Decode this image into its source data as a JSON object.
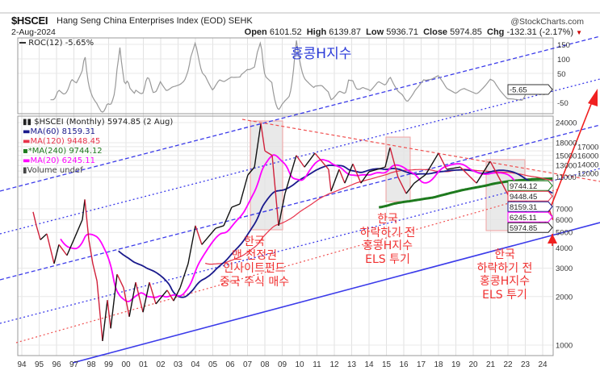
{
  "header": {
    "symbol": "$HSCEI",
    "name": "Hang Seng China Enterprises Index (EOD)  SEHK",
    "brand": "@StockCharts.com",
    "date": "2-Aug-2024",
    "open_label": "Open",
    "open": "6101.52",
    "high_label": "High",
    "high": "6139.87",
    "low_label": "Low",
    "low": "5936.71",
    "close_label": "Close",
    "close": "5974.85",
    "chg_label": "Chg",
    "chg": "-132.31 (-2.17%)"
  },
  "annotations": {
    "title": "홍콩H지수",
    "note1": [
      "한국",
      "맨 천정권",
      "인사이트펀드",
      "중국 주식 매수"
    ],
    "note2": [
      "한국",
      "하락하기 전",
      "홍콩H지수",
      "ELS 투기"
    ],
    "note3": [
      "한국",
      "하락하기 전",
      "홍콩H지수",
      "ELS 투기"
    ]
  },
  "colors": {
    "ma60": "#1a1a8c",
    "ma120": "#e8324a",
    "ma240": "#1e7a1e",
    "ma20": "#ff00ff",
    "up": "#111111",
    "down": "#d0203a",
    "channel": "#3b3bea",
    "annotation": "#f03030"
  },
  "chart_data": [
    {
      "type": "line",
      "panel": "ROC",
      "legend": "ROC(12) -5.65%",
      "last_label": "-5.65",
      "yticks": [
        "150",
        "100",
        "50",
        "-50"
      ],
      "ytick_values": [
        150,
        100,
        50,
        -50
      ]
    },
    {
      "type": "line",
      "panel": "price",
      "scale": "log",
      "legend": {
        "price": "$HSCEI (Monthly) 5974.85 (2 Aug)",
        "ma60": "MA(60) 8159.31",
        "ma120": "MA(120) 9448.45",
        "ma240": "MA(240) 9744.12",
        "ma20": "MA(20) 6245.11",
        "volume": "Volume undef"
      },
      "value_labels": {
        "ma120": "9448.45",
        "ma60": "8159.31",
        "ma20": "6245.11",
        "close": "5974.85",
        "ma240": "9744.12"
      },
      "yticks": [
        "24000",
        "18000",
        "17000",
        "16000",
        "15000",
        "14000",
        "13000",
        "12000",
        "11000",
        "7000",
        "6000",
        "5000",
        "4000",
        "3000",
        "2000",
        "1000"
      ],
      "ytick_values": [
        24000,
        18000,
        17000,
        16000,
        15000,
        14000,
        13000,
        12000,
        11000,
        7000,
        6000,
        5000,
        4000,
        3000,
        2000,
        1000
      ],
      "xticks": [
        "94",
        "95",
        "96",
        "97",
        "98",
        "99",
        "00",
        "01",
        "02",
        "03",
        "04",
        "05",
        "06",
        "07",
        "08",
        "09",
        "10",
        "11",
        "12",
        "13",
        "14",
        "15",
        "16",
        "17",
        "18",
        "19",
        "20",
        "21",
        "22",
        "23",
        "24"
      ],
      "xtick_values": [
        1994,
        1995,
        1996,
        1997,
        1998,
        1999,
        2000,
        2001,
        2002,
        2003,
        2004,
        2005,
        2006,
        2007,
        2008,
        2009,
        2010,
        2011,
        2012,
        2013,
        2014,
        2015,
        2016,
        2017,
        2018,
        2019,
        2020,
        2021,
        2022,
        2023,
        2024
      ],
      "grid": true,
      "legend_placement": "top-left",
      "points": [
        [
          1994.65,
          6700
        ],
        [
          1994.84,
          5500
        ],
        [
          1995.07,
          4500
        ],
        [
          1995.44,
          4900
        ],
        [
          1995.86,
          3200
        ],
        [
          1996.14,
          4200
        ],
        [
          1996.6,
          3600
        ],
        [
          1997.07,
          4700
        ],
        [
          1997.49,
          6000
        ],
        [
          1997.63,
          8000
        ],
        [
          1997.86,
          4500
        ],
        [
          1998.09,
          3200
        ],
        [
          1998.33,
          2500
        ],
        [
          1998.65,
          1060
        ],
        [
          1998.93,
          1900
        ],
        [
          1999.12,
          1270
        ],
        [
          1999.49,
          2750
        ],
        [
          1999.86,
          2270
        ],
        [
          2000.19,
          1500
        ],
        [
          2000.56,
          2450
        ],
        [
          2000.98,
          1600
        ],
        [
          2001.35,
          2450
        ],
        [
          2001.72,
          1800
        ],
        [
          2002.37,
          2190
        ],
        [
          2002.74,
          1880
        ],
        [
          2003.12,
          2270
        ],
        [
          2003.58,
          3200
        ],
        [
          2004.0,
          5500
        ],
        [
          2004.37,
          4200
        ],
        [
          2005.16,
          5300
        ],
        [
          2005.63,
          5500
        ],
        [
          2006.09,
          7160
        ],
        [
          2006.56,
          7500
        ],
        [
          2007.02,
          11350
        ],
        [
          2007.4,
          12700
        ],
        [
          2007.77,
          23700
        ],
        [
          2008.0,
          16000
        ],
        [
          2008.42,
          15000
        ],
        [
          2008.79,
          5500
        ],
        [
          2009.16,
          8700
        ],
        [
          2009.81,
          15000
        ],
        [
          2010.28,
          12700
        ],
        [
          2010.88,
          15500
        ],
        [
          2011.67,
          12300
        ],
        [
          2011.81,
          9000
        ],
        [
          2012.28,
          12300
        ],
        [
          2012.6,
          10100
        ],
        [
          2013.07,
          13300
        ],
        [
          2013.53,
          10100
        ],
        [
          2014.0,
          11900
        ],
        [
          2014.93,
          12700
        ],
        [
          2015.21,
          16800
        ],
        [
          2015.67,
          11000
        ],
        [
          2016.14,
          8700
        ],
        [
          2016.6,
          10100
        ],
        [
          2017.26,
          11400
        ],
        [
          2018.0,
          15500
        ],
        [
          2018.47,
          12300
        ],
        [
          2019.26,
          12700
        ],
        [
          2020.19,
          10100
        ],
        [
          2020.98,
          13800
        ],
        [
          2021.72,
          9800
        ],
        [
          2022.19,
          7800
        ],
        [
          2022.84,
          5300
        ],
        [
          2023.12,
          7500
        ],
        [
          2024.05,
          5300
        ],
        [
          2024.37,
          7000
        ],
        [
          2024.59,
          5975
        ]
      ]
    }
  ]
}
